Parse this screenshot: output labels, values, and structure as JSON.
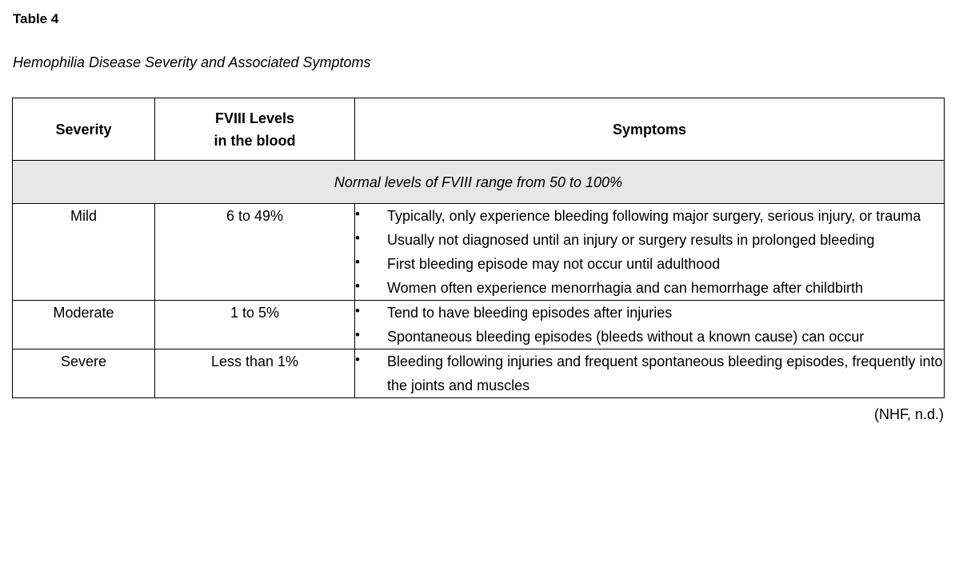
{
  "page": {
    "table_label": "Table 4",
    "table_title": "Hemophilia Disease Severity and Associated Symptoms",
    "citation": "(NHF, n.d.)"
  },
  "table": {
    "headers": {
      "severity": "Severity",
      "fviii": "FVIII Levels\nin the blood",
      "symptoms": "Symptoms"
    },
    "note_row": "Normal levels of FVIII range from 50 to 100%",
    "rows": [
      {
        "severity": "Mild",
        "fviii_level": "6 to 49%",
        "symptoms": [
          "Typically, only experience bleeding following major surgery, serious injury, or trauma",
          "Usually not diagnosed until an injury or surgery results in prolonged bleeding",
          "First bleeding episode may not occur until adulthood",
          "Women often experience menorrhagia and can hemorrhage after childbirth"
        ]
      },
      {
        "severity": "Moderate",
        "fviii_level": "1 to 5%",
        "symptoms": [
          "Tend to have bleeding episodes after injuries",
          "Spontaneous bleeding episodes (bleeds without a known cause) can occur"
        ]
      },
      {
        "severity": "Severe",
        "fviii_level": "Less than 1%",
        "symptoms": [
          "Bleeding following injuries and frequent spontaneous bleeding episodes, frequently into the joints and muscles"
        ]
      }
    ]
  }
}
